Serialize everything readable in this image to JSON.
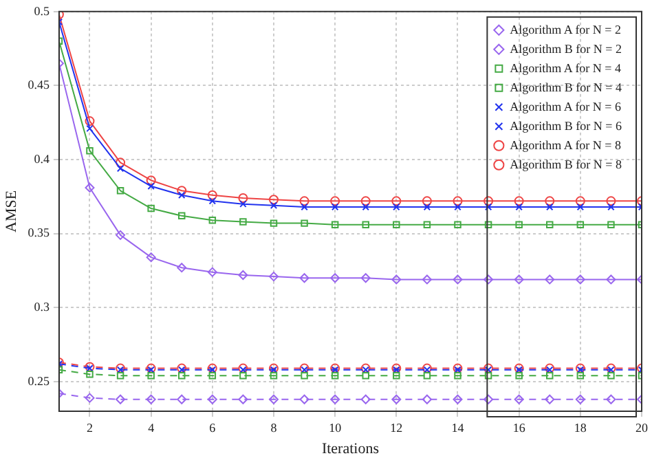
{
  "chart_data": {
    "type": "line",
    "xlabel": "Iterations",
    "ylabel": "AMSE",
    "x": [
      1,
      2,
      3,
      4,
      5,
      6,
      7,
      8,
      9,
      10,
      11,
      12,
      13,
      14,
      15,
      16,
      17,
      18,
      19,
      20
    ],
    "xlim": [
      1,
      20
    ],
    "xticks": [
      2,
      4,
      6,
      8,
      10,
      12,
      14,
      16,
      18,
      20
    ],
    "ylim": [
      0.23,
      0.5
    ],
    "yticks": [
      0.25,
      0.3,
      0.35,
      0.4,
      0.45,
      0.5
    ],
    "grid": true,
    "legend": "top right",
    "series": [
      {
        "name": "Algorithm A for N = 2",
        "color": "#9966ee",
        "marker": "diamond",
        "line_style": "solid",
        "values": [
          0.465,
          0.381,
          0.349,
          0.334,
          0.327,
          0.324,
          0.322,
          0.321,
          0.32,
          0.32,
          0.32,
          0.319,
          0.319,
          0.319,
          0.319,
          0.319,
          0.319,
          0.319,
          0.319,
          0.319
        ]
      },
      {
        "name": "Algorithm B for N = 2",
        "color": "#9966ee",
        "marker": "diamond",
        "line_style": "dashed",
        "values": [
          0.242,
          0.239,
          0.238,
          0.238,
          0.238,
          0.238,
          0.238,
          0.238,
          0.238,
          0.238,
          0.238,
          0.238,
          0.238,
          0.238,
          0.238,
          0.238,
          0.238,
          0.238,
          0.238,
          0.238
        ]
      },
      {
        "name": "Algorithm A for N = 4",
        "color": "#44aa44",
        "marker": "square",
        "line_style": "solid",
        "values": [
          0.48,
          0.406,
          0.379,
          0.367,
          0.362,
          0.359,
          0.358,
          0.357,
          0.357,
          0.356,
          0.356,
          0.356,
          0.356,
          0.356,
          0.356,
          0.356,
          0.356,
          0.356,
          0.356,
          0.356
        ]
      },
      {
        "name": "Algorithm B for N = 4",
        "color": "#44aa44",
        "marker": "square",
        "line_style": "dashed",
        "values": [
          0.258,
          0.255,
          0.254,
          0.254,
          0.254,
          0.254,
          0.254,
          0.254,
          0.254,
          0.254,
          0.254,
          0.254,
          0.254,
          0.254,
          0.254,
          0.254,
          0.254,
          0.254,
          0.254,
          0.254
        ]
      },
      {
        "name": "Algorithm A for N = 6",
        "color": "#2233ee",
        "marker": "cross",
        "line_style": "solid",
        "values": [
          0.493,
          0.421,
          0.394,
          0.382,
          0.376,
          0.372,
          0.37,
          0.369,
          0.368,
          0.368,
          0.368,
          0.368,
          0.368,
          0.368,
          0.368,
          0.368,
          0.368,
          0.368,
          0.368,
          0.368
        ]
      },
      {
        "name": "Algorithm B for N = 6",
        "color": "#2233ee",
        "marker": "cross",
        "line_style": "dashed",
        "values": [
          0.262,
          0.259,
          0.258,
          0.258,
          0.258,
          0.258,
          0.258,
          0.258,
          0.258,
          0.258,
          0.258,
          0.258,
          0.258,
          0.258,
          0.258,
          0.258,
          0.258,
          0.258,
          0.258,
          0.258
        ]
      },
      {
        "name": "Algorithm A for N = 8",
        "color": "#ee4444",
        "marker": "circle",
        "line_style": "solid",
        "values": [
          0.498,
          0.426,
          0.398,
          0.386,
          0.379,
          0.376,
          0.374,
          0.373,
          0.372,
          0.372,
          0.372,
          0.372,
          0.372,
          0.372,
          0.372,
          0.372,
          0.372,
          0.372,
          0.372,
          0.372
        ]
      },
      {
        "name": "Algorithm B for N = 8",
        "color": "#ee4444",
        "marker": "circle",
        "line_style": "dashed",
        "values": [
          0.263,
          0.26,
          0.259,
          0.259,
          0.259,
          0.259,
          0.259,
          0.259,
          0.259,
          0.259,
          0.259,
          0.259,
          0.259,
          0.259,
          0.259,
          0.259,
          0.259,
          0.259,
          0.259,
          0.259
        ]
      }
    ]
  }
}
